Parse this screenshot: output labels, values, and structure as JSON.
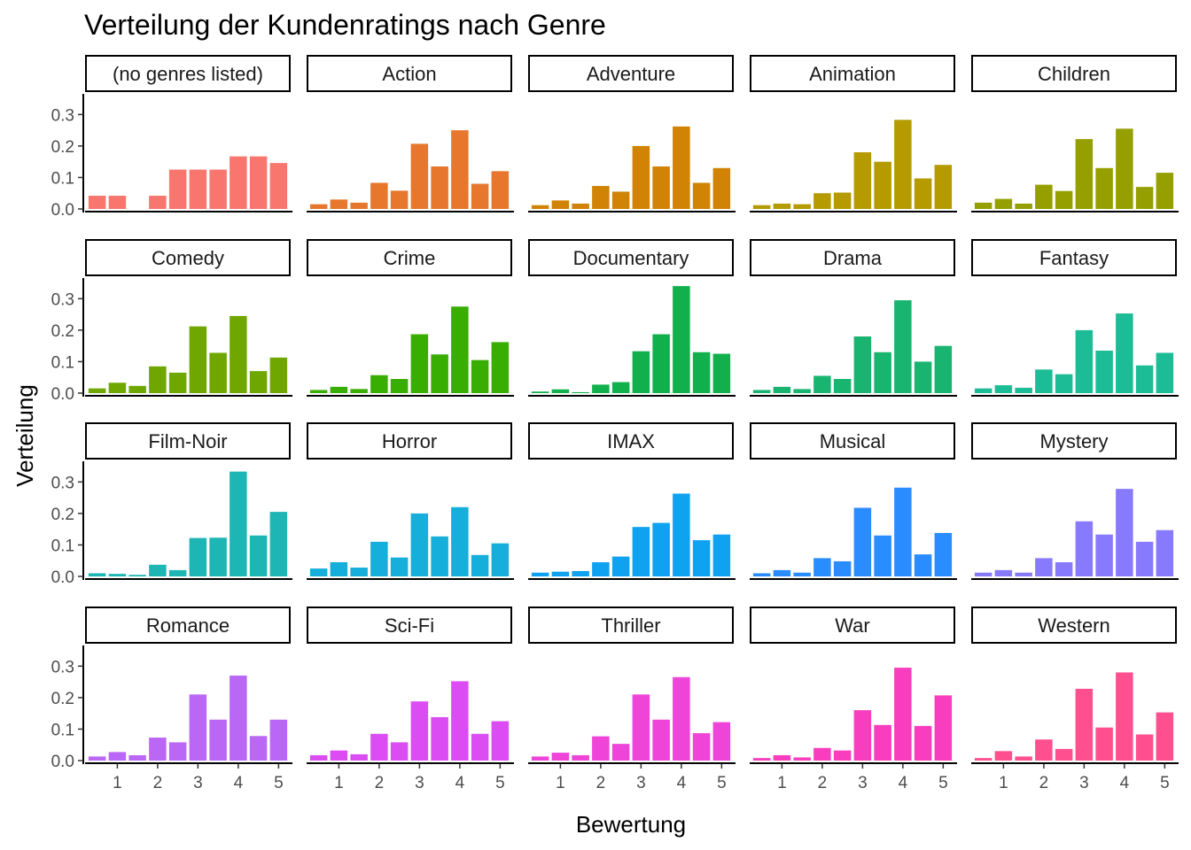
{
  "chart_data": {
    "type": "bar",
    "title": "Verteilung der Kundenratings nach Genre",
    "xlabel": "Bewertung",
    "ylabel": "Verteilung",
    "x": [
      0.5,
      1.0,
      1.5,
      2.0,
      2.5,
      3.0,
      3.5,
      4.0,
      4.5,
      5.0
    ],
    "x_ticks": [
      1,
      2,
      3,
      4,
      5
    ],
    "y_ticks": [
      0.0,
      0.1,
      0.2,
      0.3
    ],
    "y_tick_labels": [
      "0.0",
      "0.1",
      "0.2",
      "0.3"
    ],
    "ylim": [
      0,
      0.36
    ],
    "xlim": [
      0.2,
      5.3
    ],
    "facet_columns": 5,
    "grid": false,
    "legend": "none",
    "facets": [
      {
        "name": "(no genres listed)",
        "color": "#F8766D",
        "values": [
          0.042,
          0.042,
          0.0,
          0.042,
          0.125,
          0.125,
          0.125,
          0.167,
          0.167,
          0.146
        ]
      },
      {
        "name": "Action",
        "color": "#E7772C",
        "values": [
          0.015,
          0.03,
          0.02,
          0.083,
          0.058,
          0.207,
          0.135,
          0.25,
          0.08,
          0.12
        ]
      },
      {
        "name": "Adventure",
        "color": "#D08305",
        "values": [
          0.012,
          0.027,
          0.017,
          0.073,
          0.055,
          0.2,
          0.135,
          0.262,
          0.083,
          0.13
        ]
      },
      {
        "name": "Animation",
        "color": "#B59A00",
        "values": [
          0.012,
          0.017,
          0.015,
          0.05,
          0.052,
          0.18,
          0.15,
          0.283,
          0.097,
          0.14
        ]
      },
      {
        "name": "Children",
        "color": "#95A000",
        "values": [
          0.02,
          0.032,
          0.017,
          0.077,
          0.057,
          0.222,
          0.13,
          0.255,
          0.07,
          0.115
        ]
      },
      {
        "name": "Comedy",
        "color": "#6FA700",
        "values": [
          0.015,
          0.033,
          0.023,
          0.085,
          0.065,
          0.212,
          0.128,
          0.245,
          0.07,
          0.113
        ]
      },
      {
        "name": "Crime",
        "color": "#38AD02",
        "values": [
          0.01,
          0.02,
          0.013,
          0.057,
          0.045,
          0.187,
          0.123,
          0.275,
          0.105,
          0.162
        ]
      },
      {
        "name": "Documentary",
        "color": "#11B04C",
        "values": [
          0.005,
          0.012,
          0.003,
          0.027,
          0.035,
          0.133,
          0.187,
          0.34,
          0.13,
          0.125
        ]
      },
      {
        "name": "Drama",
        "color": "#19B470",
        "values": [
          0.01,
          0.02,
          0.013,
          0.055,
          0.045,
          0.18,
          0.13,
          0.295,
          0.1,
          0.15
        ]
      },
      {
        "name": "Fantasy",
        "color": "#1BBC96",
        "values": [
          0.015,
          0.025,
          0.017,
          0.075,
          0.06,
          0.2,
          0.135,
          0.253,
          0.088,
          0.128
        ]
      },
      {
        "name": "Film-Noir",
        "color": "#1EB5B5",
        "values": [
          0.01,
          0.008,
          0.005,
          0.037,
          0.02,
          0.122,
          0.123,
          0.333,
          0.13,
          0.205
        ]
      },
      {
        "name": "Horror",
        "color": "#16AEDA",
        "values": [
          0.025,
          0.045,
          0.028,
          0.11,
          0.06,
          0.2,
          0.127,
          0.22,
          0.068,
          0.105
        ]
      },
      {
        "name": "IMAX",
        "color": "#0EA2F0",
        "values": [
          0.012,
          0.015,
          0.017,
          0.045,
          0.063,
          0.157,
          0.17,
          0.263,
          0.115,
          0.133
        ]
      },
      {
        "name": "Musical",
        "color": "#2A8DFF",
        "values": [
          0.01,
          0.02,
          0.012,
          0.058,
          0.048,
          0.218,
          0.13,
          0.282,
          0.07,
          0.138
        ]
      },
      {
        "name": "Mystery",
        "color": "#887AFC",
        "values": [
          0.012,
          0.02,
          0.012,
          0.058,
          0.045,
          0.175,
          0.133,
          0.278,
          0.11,
          0.147
        ]
      },
      {
        "name": "Romance",
        "color": "#BB67F5",
        "values": [
          0.013,
          0.027,
          0.017,
          0.073,
          0.058,
          0.21,
          0.13,
          0.27,
          0.078,
          0.13
        ]
      },
      {
        "name": "Sci-Fi",
        "color": "#DB4DF2",
        "values": [
          0.017,
          0.032,
          0.02,
          0.085,
          0.058,
          0.188,
          0.138,
          0.252,
          0.085,
          0.125
        ]
      },
      {
        "name": "Thriller",
        "color": "#EE44D8",
        "values": [
          0.013,
          0.025,
          0.017,
          0.077,
          0.053,
          0.21,
          0.13,
          0.265,
          0.087,
          0.122
        ]
      },
      {
        "name": "War",
        "color": "#F83DBE",
        "values": [
          0.008,
          0.017,
          0.01,
          0.04,
          0.032,
          0.16,
          0.113,
          0.295,
          0.11,
          0.207
        ]
      },
      {
        "name": "Western",
        "color": "#FF4F8F",
        "values": [
          0.008,
          0.03,
          0.013,
          0.067,
          0.037,
          0.228,
          0.105,
          0.28,
          0.083,
          0.153
        ]
      }
    ]
  }
}
